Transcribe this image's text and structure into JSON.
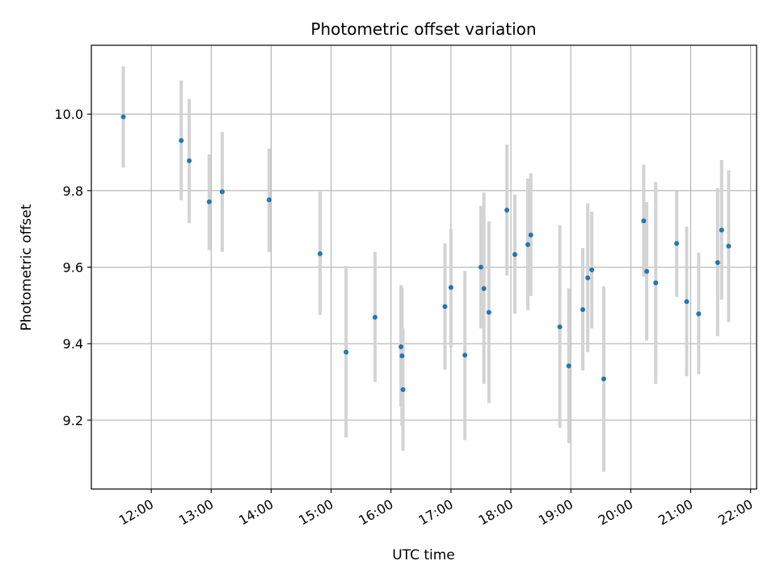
{
  "chart_data": {
    "type": "scatter",
    "title": "Photometric offset variation",
    "xlabel": "UTC time",
    "ylabel": "Photometric offset",
    "xlim": [
      "11:00",
      "22:06"
    ],
    "ylim": [
      9.02,
      10.18
    ],
    "grid": true,
    "x_ticks": [
      "12:00",
      "13:00",
      "14:00",
      "15:00",
      "16:00",
      "17:00",
      "18:00",
      "19:00",
      "20:00",
      "21:00",
      "22:00"
    ],
    "y_ticks": [
      9.2,
      9.4,
      9.6,
      9.8,
      10.0
    ],
    "colors": {
      "points": "#1f77b4",
      "errorbars": "#d3d3d3",
      "grid": "#b0b0b0"
    },
    "points": [
      {
        "time": "11:32",
        "y": 9.993,
        "err_low": 9.86,
        "err_high": 10.125
      },
      {
        "time": "12:30",
        "y": 9.931,
        "err_low": 9.775,
        "err_high": 10.088
      },
      {
        "time": "12:38",
        "y": 9.878,
        "err_low": 9.715,
        "err_high": 10.04
      },
      {
        "time": "12:58",
        "y": 9.771,
        "err_low": 9.645,
        "err_high": 9.895
      },
      {
        "time": "13:11",
        "y": 9.797,
        "err_low": 9.64,
        "err_high": 9.953
      },
      {
        "time": "13:58",
        "y": 9.776,
        "err_low": 9.64,
        "err_high": 9.91
      },
      {
        "time": "14:49",
        "y": 9.635,
        "err_low": 9.475,
        "err_high": 9.797
      },
      {
        "time": "15:15",
        "y": 9.378,
        "err_low": 9.155,
        "err_high": 9.603
      },
      {
        "time": "15:44",
        "y": 9.469,
        "err_low": 9.3,
        "err_high": 9.64
      },
      {
        "time": "16:10",
        "y": 9.392,
        "err_low": 9.235,
        "err_high": 9.553
      },
      {
        "time": "16:11",
        "y": 9.368,
        "err_low": 9.185,
        "err_high": 9.547
      },
      {
        "time": "16:12",
        "y": 9.28,
        "err_low": 9.12,
        "err_high": 9.44
      },
      {
        "time": "16:54",
        "y": 9.497,
        "err_low": 9.332,
        "err_high": 9.662
      },
      {
        "time": "17:00",
        "y": 9.547,
        "err_low": 9.39,
        "err_high": 9.7
      },
      {
        "time": "17:14",
        "y": 9.37,
        "err_low": 9.148,
        "err_high": 9.59
      },
      {
        "time": "17:30",
        "y": 9.6,
        "err_low": 9.44,
        "err_high": 9.76
      },
      {
        "time": "17:33",
        "y": 9.544,
        "err_low": 9.295,
        "err_high": 9.795
      },
      {
        "time": "17:38",
        "y": 9.482,
        "err_low": 9.245,
        "err_high": 9.72
      },
      {
        "time": "17:56",
        "y": 9.749,
        "err_low": 9.578,
        "err_high": 9.92
      },
      {
        "time": "18:04",
        "y": 9.633,
        "err_low": 9.478,
        "err_high": 9.79
      },
      {
        "time": "18:17",
        "y": 9.659,
        "err_low": 9.488,
        "err_high": 9.832
      },
      {
        "time": "18:20",
        "y": 9.684,
        "err_low": 9.525,
        "err_high": 9.845
      },
      {
        "time": "18:49",
        "y": 9.444,
        "err_low": 9.18,
        "err_high": 9.71
      },
      {
        "time": "18:58",
        "y": 9.342,
        "err_low": 9.14,
        "err_high": 9.545
      },
      {
        "time": "19:12",
        "y": 9.489,
        "err_low": 9.33,
        "err_high": 9.65
      },
      {
        "time": "19:17",
        "y": 9.572,
        "err_low": 9.378,
        "err_high": 9.767
      },
      {
        "time": "19:21",
        "y": 9.593,
        "err_low": 9.44,
        "err_high": 9.745
      },
      {
        "time": "19:33",
        "y": 9.308,
        "err_low": 9.065,
        "err_high": 9.55
      },
      {
        "time": "20:13",
        "y": 9.721,
        "err_low": 9.575,
        "err_high": 9.868
      },
      {
        "time": "20:16",
        "y": 9.589,
        "err_low": 9.408,
        "err_high": 9.77
      },
      {
        "time": "20:25",
        "y": 9.559,
        "err_low": 9.295,
        "err_high": 9.823
      },
      {
        "time": "20:46",
        "y": 9.662,
        "err_low": 9.522,
        "err_high": 9.8
      },
      {
        "time": "20:56",
        "y": 9.51,
        "err_low": 9.315,
        "err_high": 9.706
      },
      {
        "time": "21:08",
        "y": 9.478,
        "err_low": 9.32,
        "err_high": 9.638
      },
      {
        "time": "21:27",
        "y": 9.612,
        "err_low": 9.42,
        "err_high": 9.806
      },
      {
        "time": "21:31",
        "y": 9.697,
        "err_low": 9.515,
        "err_high": 9.88
      },
      {
        "time": "21:38",
        "y": 9.655,
        "err_low": 9.456,
        "err_high": 9.853
      }
    ]
  }
}
